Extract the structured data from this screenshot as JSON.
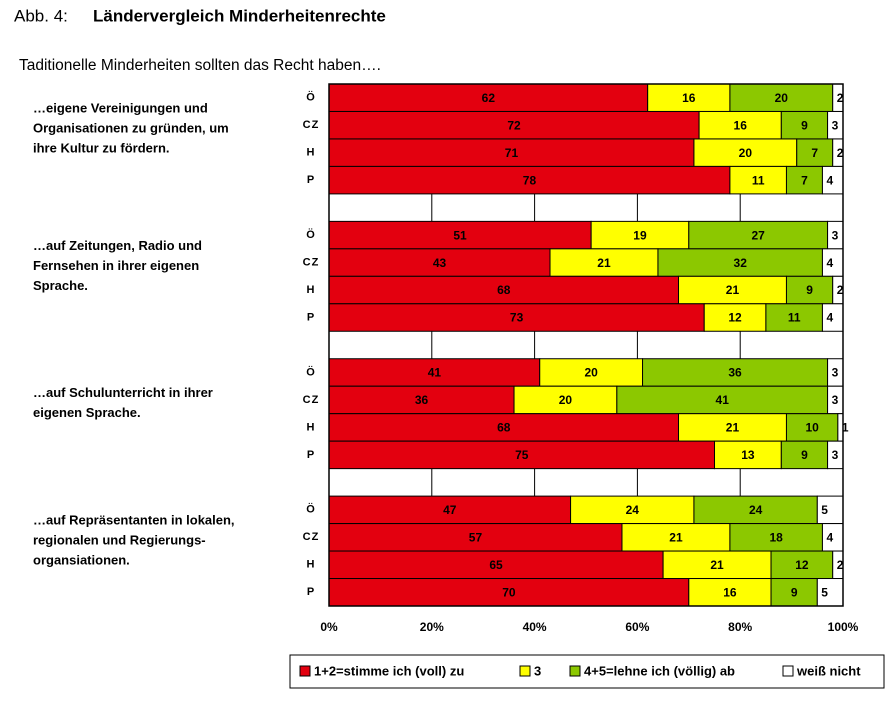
{
  "chart_data": {
    "type": "stacked-bar-horizontal",
    "figure_label": "Abb. 4:",
    "title": "Ländervergleich Minderheitenrechte",
    "subtitle": "Taditionelle Minderheiten sollten das Recht  haben….",
    "groups": [
      [
        "…eigene Vereinigungen und",
        "Organisationen zu gründen, um",
        "ihre Kultur zu fördern."
      ],
      [
        "…auf Zeitungen, Radio und",
        "Fernsehen in ihrer eigenen",
        "Sprache."
      ],
      [
        "…auf Schulunterricht in ihrer",
        "eigenen Sprache."
      ],
      [
        "…auf Repräsentanten in lokalen,",
        "regionalen und Regierungs-",
        "organsiationen."
      ]
    ],
    "categories": [
      "Ö",
      "CZ",
      "H",
      "P",
      "Ö",
      "CZ",
      "H",
      "P",
      "Ö",
      "CZ",
      "H",
      "P",
      "Ö",
      "CZ",
      "H",
      "P"
    ],
    "series": [
      {
        "name": "1+2=stimme ich (voll) zu",
        "color": "#e3000f",
        "values": [
          62,
          72,
          71,
          78,
          51,
          43,
          68,
          73,
          41,
          36,
          68,
          75,
          47,
          57,
          65,
          70
        ]
      },
      {
        "name": "3",
        "color": "#ffff00",
        "values": [
          16,
          16,
          20,
          11,
          19,
          21,
          21,
          12,
          20,
          20,
          21,
          13,
          24,
          21,
          21,
          16
        ]
      },
      {
        "name": "4+5=lehne ich (völlig) ab",
        "color": "#8cc800",
        "values": [
          20,
          9,
          7,
          7,
          27,
          32,
          9,
          11,
          36,
          41,
          10,
          9,
          24,
          18,
          12,
          9
        ]
      },
      {
        "name": "weiß nicht",
        "color": "#ffffff",
        "values": [
          2,
          3,
          2,
          4,
          3,
          4,
          2,
          4,
          3,
          3,
          1,
          3,
          5,
          4,
          2,
          5
        ]
      }
    ],
    "xlim": [
      0,
      100
    ],
    "xticks": [
      {
        "value": 0,
        "label": "0%"
      },
      {
        "value": 20,
        "label": "20%"
      },
      {
        "value": 40,
        "label": "40%"
      },
      {
        "value": 60,
        "label": "60%"
      },
      {
        "value": 80,
        "label": "80%"
      },
      {
        "value": 100,
        "label": "100%"
      }
    ],
    "grid": true
  }
}
